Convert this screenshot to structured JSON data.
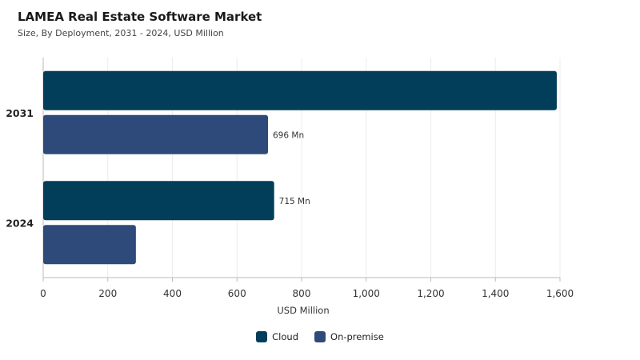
{
  "chart_data": {
    "type": "bar",
    "orientation": "horizontal",
    "title": "LAMEA Real Estate Software Market",
    "subtitle": "Size, By Deployment, 2031 - 2024, USD Million",
    "xlabel": "USD Million",
    "ylabel": "",
    "xlim": [
      0,
      1600
    ],
    "x_ticks": [
      0,
      200,
      400,
      600,
      800,
      1000,
      1200,
      1400,
      1600
    ],
    "x_tick_labels": [
      "0",
      "200",
      "400",
      "600",
      "800",
      "1,000",
      "1,200",
      "1,400",
      "1,600"
    ],
    "categories": [
      "2031",
      "2024"
    ],
    "series": [
      {
        "name": "Cloud",
        "color": "#023e5a",
        "values": [
          1590,
          715
        ],
        "data_labels": [
          "",
          "715 Mn"
        ]
      },
      {
        "name": "On-premise",
        "color": "#2e4a7a",
        "values": [
          696,
          287
        ],
        "data_labels": [
          "696 Mn",
          ""
        ]
      }
    ],
    "grid": true,
    "legend_position": "bottom"
  }
}
